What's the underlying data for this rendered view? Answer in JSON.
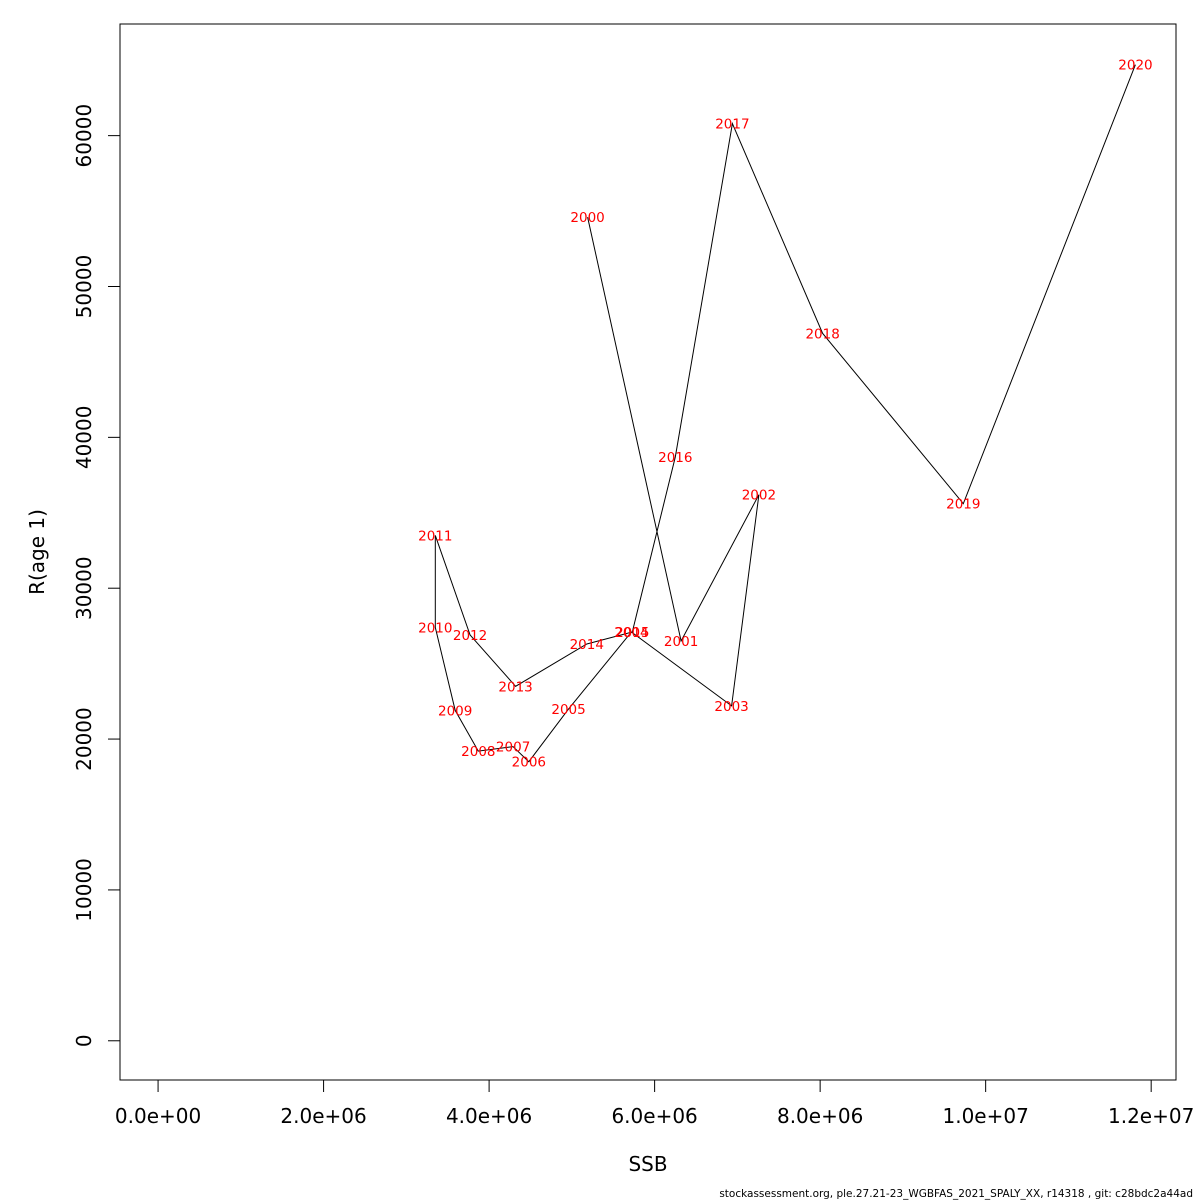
{
  "chart_data": {
    "type": "line",
    "title": "",
    "xlabel": "SSB",
    "ylabel": "R(age 1)",
    "xlim": [
      -460000,
      12300000
    ],
    "ylim": [
      -2600,
      67400
    ],
    "x_ticks": [
      0,
      2000000,
      4000000,
      6000000,
      8000000,
      10000000,
      12000000
    ],
    "x_tick_labels": [
      "0.0e+00",
      "2.0e+06",
      "4.0e+06",
      "6.0e+06",
      "8.0e+06",
      "1.0e+07",
      "1.2e+07"
    ],
    "y_ticks": [
      0,
      10000,
      20000,
      30000,
      40000,
      50000,
      60000
    ],
    "y_tick_labels": [
      "0",
      "10000",
      "20000",
      "30000",
      "40000",
      "50000",
      "60000"
    ],
    "grid": false,
    "line_color": "#000000",
    "label_color": "#ff0000",
    "points": [
      {
        "label": "2000",
        "x": 5190000,
        "y": 54600
      },
      {
        "label": "2001",
        "x": 6320000,
        "y": 26500
      },
      {
        "label": "2002",
        "x": 7260000,
        "y": 36200
      },
      {
        "label": "2003",
        "x": 6930000,
        "y": 22200
      },
      {
        "label": "2004",
        "x": 5720000,
        "y": 27100
      },
      {
        "label": "2005",
        "x": 4960000,
        "y": 22000
      },
      {
        "label": "2006",
        "x": 4480000,
        "y": 18500
      },
      {
        "label": "2007",
        "x": 4290000,
        "y": 19500
      },
      {
        "label": "2008",
        "x": 3870000,
        "y": 19200
      },
      {
        "label": "2009",
        "x": 3590000,
        "y": 21900
      },
      {
        "label": "2010",
        "x": 3350000,
        "y": 27400
      },
      {
        "label": "2011",
        "x": 3350000,
        "y": 33500
      },
      {
        "label": "2012",
        "x": 3770000,
        "y": 26900
      },
      {
        "label": "2013",
        "x": 4320000,
        "y": 23500
      },
      {
        "label": "2014",
        "x": 5180000,
        "y": 26300
      },
      {
        "label": "2015",
        "x": 5730000,
        "y": 27100
      },
      {
        "label": "2016",
        "x": 6250000,
        "y": 38700
      },
      {
        "label": "2017",
        "x": 6940000,
        "y": 60800
      },
      {
        "label": "2018",
        "x": 8030000,
        "y": 46900
      },
      {
        "label": "2019",
        "x": 9730000,
        "y": 35600
      },
      {
        "label": "2020",
        "x": 11810000,
        "y": 64700
      }
    ]
  },
  "footer_text": "stockassessment.org, ple.27.21-23_WGBFAS_2021_SPALY_XX, r14318 , git: c28bdc2a44ad"
}
